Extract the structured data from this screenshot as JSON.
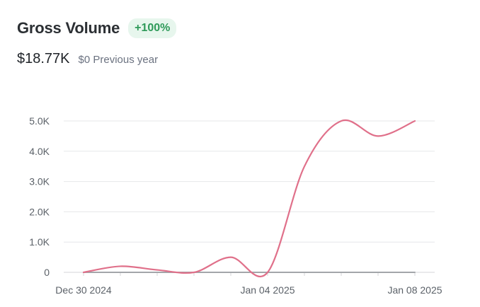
{
  "header": {
    "title": "Gross Volume",
    "badge": "+100%",
    "current_value": "$18.77K",
    "previous_value_label": "$0 Previous year"
  },
  "colors": {
    "current_series": "#e0708a",
    "previous_series": "#a3a6aa",
    "badge_text": "#2e9a59",
    "badge_bg": "#e7f6ed",
    "grid": "#e6e7ea"
  },
  "chart_data": {
    "type": "line",
    "title": "Gross Volume",
    "xlabel": "",
    "ylabel": "",
    "x_ticks": [
      "Dec 30 2024",
      "Jan 04 2025",
      "Jan 08 2025"
    ],
    "y_ticks": [
      "0",
      "1.0K",
      "2.0K",
      "3.0K",
      "4.0K",
      "5.0K"
    ],
    "ylim": [
      0,
      5000
    ],
    "grid": true,
    "x": [
      "Dec 30 2024",
      "Dec 31 2024",
      "Jan 01 2025",
      "Jan 02 2025",
      "Jan 03 2025",
      "Jan 04 2025",
      "Jan 05 2025",
      "Jan 06 2025",
      "Jan 07 2025",
      "Jan 08 2025"
    ],
    "series": [
      {
        "key": "current",
        "values": [
          0,
          200,
          80,
          0,
          500,
          0,
          3500,
          5000,
          4500,
          5000
        ]
      },
      {
        "key": "previous",
        "values": [
          0,
          0,
          0,
          0,
          0,
          0,
          0,
          0,
          0,
          0
        ]
      }
    ]
  }
}
